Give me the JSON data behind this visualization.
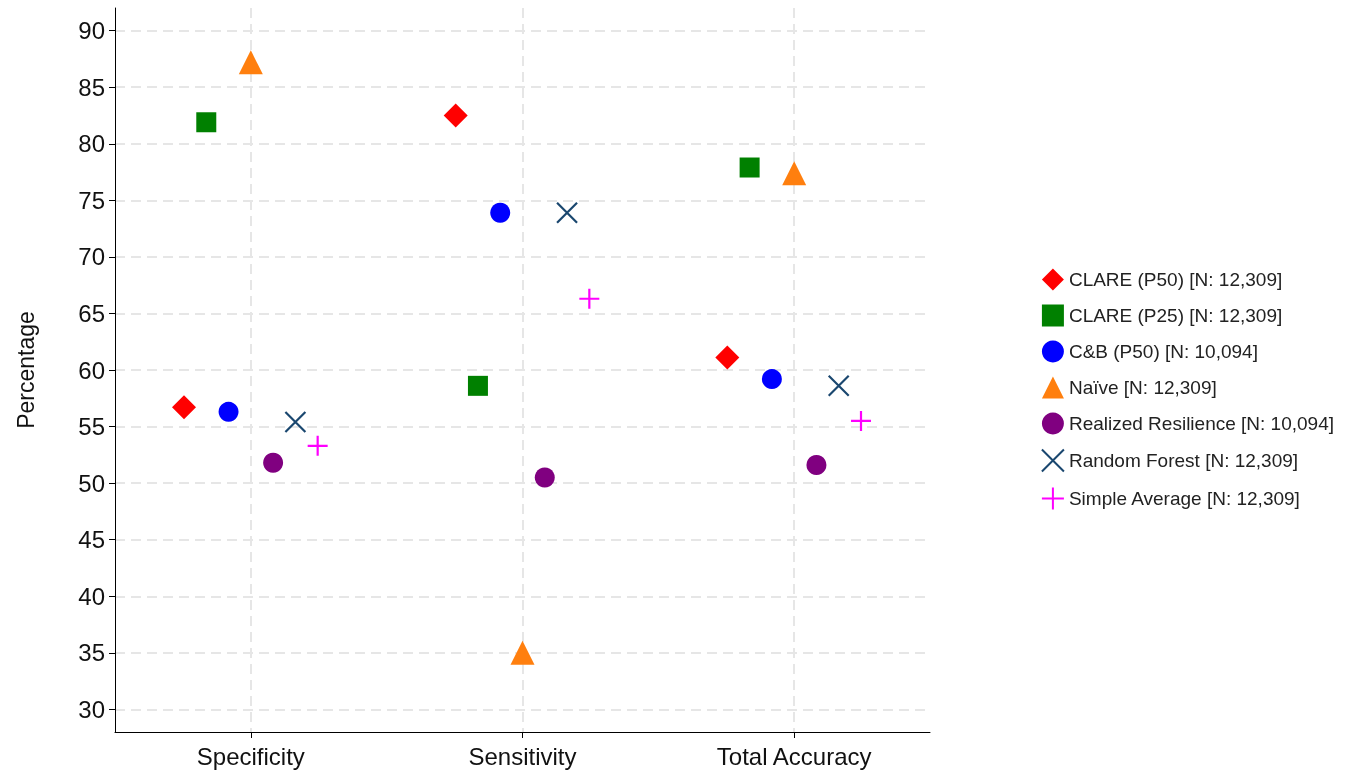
{
  "chart_data": {
    "type": "scatter",
    "ylabel": "Percentage",
    "categories": [
      "Specificity",
      "Sensitivity",
      "Total Accuracy"
    ],
    "ylim": [
      28,
      92
    ],
    "yticks": [
      30,
      35,
      40,
      45,
      50,
      55,
      60,
      65,
      70,
      75,
      80,
      85,
      90
    ],
    "grid": true,
    "legend": "right",
    "series": [
      {
        "name": "CLARE (P50) [N: 12,309]",
        "color": "#ff0000",
        "marker": "diamond",
        "values": [
          56.7,
          82.5,
          61.1
        ]
      },
      {
        "name": "CLARE (P25) [N: 12,309]",
        "color": "#008000",
        "marker": "square",
        "values": [
          81.9,
          58.6,
          77.9
        ]
      },
      {
        "name": "C&B (P50) [N: 10,094]",
        "color": "#0000ff",
        "marker": "circle",
        "values": [
          56.3,
          73.9,
          59.2
        ]
      },
      {
        "name": "Naïve [N: 12,309]",
        "color": "#ff7f0e",
        "marker": "triangle",
        "values": [
          87.2,
          35.0,
          77.4
        ]
      },
      {
        "name": "Realized Resilience [N: 10,094]",
        "color": "#800080",
        "marker": "circle",
        "values": [
          51.8,
          50.5,
          51.6
        ]
      },
      {
        "name": "Random Forest [N: 12,309]",
        "color": "#1a476f",
        "marker": "cross",
        "values": [
          55.4,
          73.9,
          58.6
        ]
      },
      {
        "name": "Simple Average [N: 12,309]",
        "color": "#ff00ff",
        "marker": "plus",
        "values": [
          53.3,
          66.3,
          55.5
        ]
      }
    ]
  }
}
